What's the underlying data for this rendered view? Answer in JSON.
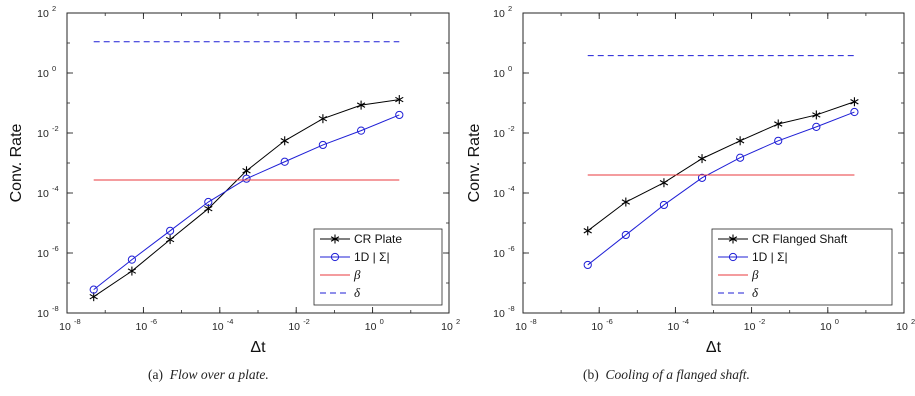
{
  "chart_data": [
    {
      "type": "line",
      "title": "",
      "xlabel": "Δt",
      "ylabel": "Conv. Rate",
      "xscale": "log",
      "yscale": "log",
      "xlim": [
        1e-08,
        100
      ],
      "ylim": [
        1e-08,
        100
      ],
      "xticks": [
        {
          "value": 1e-08,
          "base": "10",
          "exp": "-8"
        },
        {
          "value": 1e-06,
          "base": "10",
          "exp": "-6"
        },
        {
          "value": 0.0001,
          "base": "10",
          "exp": "-4"
        },
        {
          "value": 0.01,
          "base": "10",
          "exp": "-2"
        },
        {
          "value": 1,
          "base": "10",
          "exp": "0"
        },
        {
          "value": 100,
          "base": "10",
          "exp": "2"
        }
      ],
      "yticks": [
        {
          "value": 1e-08,
          "base": "10",
          "exp": "-8"
        },
        {
          "value": 1e-06,
          "base": "10",
          "exp": "-6"
        },
        {
          "value": 0.0001,
          "base": "10",
          "exp": "-4"
        },
        {
          "value": 0.01,
          "base": "10",
          "exp": "-2"
        },
        {
          "value": 1,
          "base": "10",
          "exp": "0"
        },
        {
          "value": 100,
          "base": "10",
          "exp": "2"
        }
      ],
      "grid": false,
      "legend": "bottom-right",
      "series": [
        {
          "name": "CR Plate",
          "color": "#000000",
          "marker": "asterisk",
          "style": "solid",
          "x": [
            5e-08,
            5e-07,
            5e-06,
            5e-05,
            0.0005,
            0.005,
            0.05,
            0.5,
            5
          ],
          "y": [
            3.5e-08,
            2.5e-07,
            2.8e-06,
            3e-05,
            0.00055,
            0.0055,
            0.03,
            0.085,
            0.13
          ]
        },
        {
          "name": "1D | Σ|",
          "color": "#1f1fd6",
          "marker": "circle",
          "style": "solid",
          "x": [
            5e-08,
            5e-07,
            5e-06,
            5e-05,
            0.0005,
            0.005,
            0.05,
            0.5,
            5
          ],
          "y": [
            6e-08,
            6e-07,
            5.5e-06,
            5e-05,
            0.0003,
            0.0011,
            0.004,
            0.012,
            0.04
          ]
        },
        {
          "name": "β",
          "color": "#e8383d",
          "marker": "none",
          "style": "solid",
          "x": [
            5e-08,
            5
          ],
          "y": [
            0.00027,
            0.00027
          ]
        },
        {
          "name": "δ",
          "color": "#1f1fd6",
          "marker": "none",
          "style": "dashed",
          "x": [
            5e-08,
            5
          ],
          "y": [
            11,
            11
          ]
        }
      ],
      "caption_label": "(a)",
      "caption_text": "Flow over a plate."
    },
    {
      "type": "line",
      "title": "",
      "xlabel": "Δt",
      "ylabel": "Conv. Rate",
      "xscale": "log",
      "yscale": "log",
      "xlim": [
        1e-08,
        100
      ],
      "ylim": [
        1e-08,
        100
      ],
      "xticks": [
        {
          "value": 1e-08,
          "base": "10",
          "exp": "-8"
        },
        {
          "value": 1e-06,
          "base": "10",
          "exp": "-6"
        },
        {
          "value": 0.0001,
          "base": "10",
          "exp": "-4"
        },
        {
          "value": 0.01,
          "base": "10",
          "exp": "-2"
        },
        {
          "value": 1,
          "base": "10",
          "exp": "0"
        },
        {
          "value": 100,
          "base": "10",
          "exp": "2"
        }
      ],
      "yticks": [
        {
          "value": 1e-08,
          "base": "10",
          "exp": "-8"
        },
        {
          "value": 1e-06,
          "base": "10",
          "exp": "-6"
        },
        {
          "value": 0.0001,
          "base": "10",
          "exp": "-4"
        },
        {
          "value": 0.01,
          "base": "10",
          "exp": "-2"
        },
        {
          "value": 1,
          "base": "10",
          "exp": "0"
        },
        {
          "value": 100,
          "base": "10",
          "exp": "2"
        }
      ],
      "grid": false,
      "legend": "bottom-right",
      "series": [
        {
          "name": "CR Flanged Shaft",
          "color": "#000000",
          "marker": "asterisk",
          "style": "solid",
          "x": [
            5e-07,
            5e-06,
            5e-05,
            0.0005,
            0.005,
            0.05,
            0.5,
            5
          ],
          "y": [
            5.5e-06,
            5e-05,
            0.00022,
            0.0014,
            0.0055,
            0.02,
            0.04,
            0.11
          ]
        },
        {
          "name": "1D | Σ|",
          "color": "#1f1fd6",
          "marker": "circle",
          "style": "solid",
          "x": [
            5e-07,
            5e-06,
            5e-05,
            0.0005,
            0.005,
            0.05,
            0.5,
            5
          ],
          "y": [
            4e-07,
            4e-06,
            4e-05,
            0.00032,
            0.0015,
            0.0055,
            0.016,
            0.05
          ]
        },
        {
          "name": "β",
          "color": "#e8383d",
          "marker": "none",
          "style": "solid",
          "x": [
            5e-07,
            5
          ],
          "y": [
            0.0004,
            0.0004
          ]
        },
        {
          "name": "δ",
          "color": "#1f1fd6",
          "marker": "none",
          "style": "dashed",
          "x": [
            5e-07,
            5
          ],
          "y": [
            3.8,
            3.8
          ]
        }
      ],
      "caption_label": "(b)",
      "caption_text": "Cooling of a flanged shaft."
    }
  ]
}
